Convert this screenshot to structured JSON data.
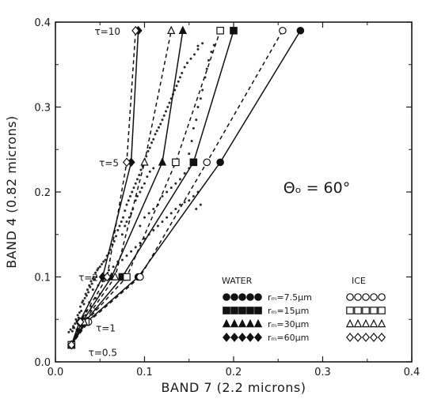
{
  "chart_data": {
    "type": "scatter",
    "xlabel": "BAND 7 (2.2 microns)",
    "ylabel": "BAND 4 (0.82 microns)",
    "xlim": [
      0.0,
      0.4
    ],
    "ylim": [
      0.0,
      0.4
    ],
    "x_ticks": [
      "0.0",
      "0.1",
      "0.2",
      "0.3",
      "0.4"
    ],
    "y_ticks": [
      "0.0",
      "0.1",
      "0.2",
      "0.3",
      "0.4"
    ],
    "grid": false,
    "legend_position": "bottom-right",
    "annotation": "Θₒ = 60°",
    "tau_labels": [
      {
        "text": "τ=10",
        "y": 0.39
      },
      {
        "text": "τ=5",
        "y": 0.235
      },
      {
        "text": "τ=2",
        "y": 0.1
      },
      {
        "text": "τ=1",
        "y": 0.047
      },
      {
        "text": "τ=0.5",
        "y": 0.02
      }
    ],
    "legend": {
      "water_header": "WATER",
      "ice_header": "ICE",
      "radii": [
        "rₘ=7.5μm",
        "rₘ=15μm",
        "rₘ=30μm",
        "rₘ=60μm"
      ]
    },
    "series": [
      {
        "phase": "water",
        "radius": "7.5μm",
        "marker": "circle",
        "line": "solid",
        "points": [
          [
            0.018,
            0.02
          ],
          [
            0.035,
            0.047
          ],
          [
            0.093,
            0.1
          ],
          [
            0.185,
            0.235
          ],
          [
            0.275,
            0.39
          ]
        ]
      },
      {
        "phase": "water",
        "radius": "15μm",
        "marker": "square",
        "line": "solid",
        "points": [
          [
            0.018,
            0.02
          ],
          [
            0.033,
            0.047
          ],
          [
            0.075,
            0.1
          ],
          [
            0.155,
            0.235
          ],
          [
            0.2,
            0.39
          ]
        ]
      },
      {
        "phase": "water",
        "radius": "30μm",
        "marker": "triangle",
        "line": "solid",
        "points": [
          [
            0.018,
            0.02
          ],
          [
            0.03,
            0.047
          ],
          [
            0.063,
            0.1
          ],
          [
            0.12,
            0.235
          ],
          [
            0.143,
            0.39
          ]
        ]
      },
      {
        "phase": "water",
        "radius": "60μm",
        "marker": "diamond",
        "line": "solid",
        "points": [
          [
            0.018,
            0.02
          ],
          [
            0.027,
            0.047
          ],
          [
            0.053,
            0.1
          ],
          [
            0.085,
            0.235
          ],
          [
            0.093,
            0.39
          ]
        ]
      },
      {
        "phase": "ice",
        "radius": "7.5μm",
        "marker": "circle",
        "line": "dashed",
        "points": [
          [
            0.018,
            0.02
          ],
          [
            0.037,
            0.047
          ],
          [
            0.095,
            0.1
          ],
          [
            0.17,
            0.235
          ],
          [
            0.255,
            0.39
          ]
        ]
      },
      {
        "phase": "ice",
        "radius": "15μm",
        "marker": "square",
        "line": "dashed",
        "points": [
          [
            0.018,
            0.02
          ],
          [
            0.034,
            0.047
          ],
          [
            0.08,
            0.1
          ],
          [
            0.135,
            0.235
          ],
          [
            0.185,
            0.39
          ]
        ]
      },
      {
        "phase": "ice",
        "radius": "30μm",
        "marker": "triangle",
        "line": "dashed",
        "points": [
          [
            0.018,
            0.02
          ],
          [
            0.032,
            0.047
          ],
          [
            0.067,
            0.1
          ],
          [
            0.1,
            0.235
          ],
          [
            0.13,
            0.39
          ]
        ]
      },
      {
        "phase": "ice",
        "radius": "60μm",
        "marker": "diamond",
        "line": "dashed",
        "points": [
          [
            0.018,
            0.02
          ],
          [
            0.028,
            0.047
          ],
          [
            0.058,
            0.1
          ],
          [
            0.08,
            0.235
          ],
          [
            0.09,
            0.39
          ]
        ]
      }
    ],
    "observations": [
      [
        0.015,
        0.035
      ],
      [
        0.017,
        0.038
      ],
      [
        0.019,
        0.036
      ],
      [
        0.02,
        0.042
      ],
      [
        0.021,
        0.04
      ],
      [
        0.022,
        0.045
      ],
      [
        0.023,
        0.05
      ],
      [
        0.024,
        0.048
      ],
      [
        0.025,
        0.055
      ],
      [
        0.026,
        0.052
      ],
      [
        0.027,
        0.058
      ],
      [
        0.028,
        0.065
      ],
      [
        0.029,
        0.06
      ],
      [
        0.03,
        0.07
      ],
      [
        0.031,
        0.072
      ],
      [
        0.032,
        0.068
      ],
      [
        0.033,
        0.075
      ],
      [
        0.034,
        0.08
      ],
      [
        0.035,
        0.078
      ],
      [
        0.036,
        0.085
      ],
      [
        0.037,
        0.082
      ],
      [
        0.038,
        0.09
      ],
      [
        0.039,
        0.088
      ],
      [
        0.04,
        0.095
      ],
      [
        0.041,
        0.092
      ],
      [
        0.042,
        0.098
      ],
      [
        0.043,
        0.1
      ],
      [
        0.044,
        0.097
      ],
      [
        0.045,
        0.105
      ],
      [
        0.046,
        0.1
      ],
      [
        0.047,
        0.108
      ],
      [
        0.048,
        0.11
      ],
      [
        0.05,
        0.112
      ],
      [
        0.052,
        0.115
      ],
      [
        0.054,
        0.118
      ],
      [
        0.056,
        0.12
      ],
      [
        0.058,
        0.125
      ],
      [
        0.06,
        0.128
      ],
      [
        0.062,
        0.132
      ],
      [
        0.064,
        0.138
      ],
      [
        0.066,
        0.142
      ],
      [
        0.068,
        0.148
      ],
      [
        0.07,
        0.155
      ],
      [
        0.072,
        0.16
      ],
      [
        0.074,
        0.165
      ],
      [
        0.076,
        0.17
      ],
      [
        0.078,
        0.178
      ],
      [
        0.08,
        0.185
      ],
      [
        0.082,
        0.19
      ],
      [
        0.084,
        0.195
      ],
      [
        0.086,
        0.2
      ],
      [
        0.088,
        0.205
      ],
      [
        0.09,
        0.21
      ],
      [
        0.092,
        0.215
      ],
      [
        0.094,
        0.22
      ],
      [
        0.096,
        0.226
      ],
      [
        0.098,
        0.23
      ],
      [
        0.1,
        0.236
      ],
      [
        0.102,
        0.242
      ],
      [
        0.104,
        0.248
      ],
      [
        0.106,
        0.252
      ],
      [
        0.108,
        0.258
      ],
      [
        0.11,
        0.262
      ],
      [
        0.112,
        0.268
      ],
      [
        0.114,
        0.272
      ],
      [
        0.116,
        0.276
      ],
      [
        0.118,
        0.28
      ],
      [
        0.12,
        0.285
      ],
      [
        0.122,
        0.29
      ],
      [
        0.124,
        0.295
      ],
      [
        0.126,
        0.3
      ],
      [
        0.128,
        0.305
      ],
      [
        0.13,
        0.31
      ],
      [
        0.132,
        0.315
      ],
      [
        0.134,
        0.32
      ],
      [
        0.136,
        0.325
      ],
      [
        0.138,
        0.33
      ],
      [
        0.14,
        0.335
      ],
      [
        0.142,
        0.34
      ],
      [
        0.145,
        0.347
      ],
      [
        0.148,
        0.352
      ],
      [
        0.152,
        0.357
      ],
      [
        0.156,
        0.362
      ],
      [
        0.16,
        0.368
      ],
      [
        0.16,
        0.372
      ],
      [
        0.165,
        0.375
      ],
      [
        0.055,
        0.1
      ],
      [
        0.06,
        0.108
      ],
      [
        0.065,
        0.112
      ],
      [
        0.07,
        0.118
      ],
      [
        0.075,
        0.12
      ],
      [
        0.08,
        0.125
      ],
      [
        0.085,
        0.13
      ],
      [
        0.09,
        0.135
      ],
      [
        0.095,
        0.14
      ],
      [
        0.1,
        0.145
      ],
      [
        0.105,
        0.15
      ],
      [
        0.11,
        0.155
      ],
      [
        0.115,
        0.16
      ],
      [
        0.12,
        0.165
      ],
      [
        0.125,
        0.17
      ],
      [
        0.13,
        0.175
      ],
      [
        0.135,
        0.18
      ],
      [
        0.14,
        0.185
      ],
      [
        0.145,
        0.188
      ],
      [
        0.15,
        0.19
      ],
      [
        0.155,
        0.195
      ],
      [
        0.16,
        0.2
      ],
      [
        0.163,
        0.185
      ],
      [
        0.158,
        0.18
      ],
      [
        0.075,
        0.15
      ],
      [
        0.078,
        0.16
      ],
      [
        0.08,
        0.165
      ],
      [
        0.083,
        0.17
      ],
      [
        0.085,
        0.175
      ],
      [
        0.087,
        0.18
      ],
      [
        0.09,
        0.19
      ],
      [
        0.092,
        0.195
      ],
      [
        0.095,
        0.2
      ],
      [
        0.097,
        0.205
      ],
      [
        0.1,
        0.21
      ],
      [
        0.103,
        0.218
      ],
      [
        0.106,
        0.224
      ],
      [
        0.11,
        0.228
      ],
      [
        0.035,
        0.06
      ],
      [
        0.04,
        0.065
      ],
      [
        0.045,
        0.075
      ],
      [
        0.05,
        0.08
      ],
      [
        0.038,
        0.07
      ],
      [
        0.042,
        0.085
      ],
      [
        0.048,
        0.09
      ],
      [
        0.053,
        0.095
      ],
      [
        0.02,
        0.04
      ],
      [
        0.025,
        0.045
      ],
      [
        0.03,
        0.05
      ],
      [
        0.034,
        0.055
      ],
      [
        0.04,
        0.06
      ],
      [
        0.045,
        0.062
      ],
      [
        0.024,
        0.038
      ],
      [
        0.028,
        0.042
      ],
      [
        0.095,
        0.16
      ],
      [
        0.1,
        0.17
      ],
      [
        0.105,
        0.175
      ],
      [
        0.11,
        0.18
      ],
      [
        0.115,
        0.185
      ],
      [
        0.12,
        0.195
      ],
      [
        0.125,
        0.2
      ],
      [
        0.13,
        0.205
      ],
      [
        0.135,
        0.21
      ],
      [
        0.14,
        0.215
      ],
      [
        0.145,
        0.222
      ],
      [
        0.15,
        0.228
      ],
      [
        0.15,
        0.245
      ],
      [
        0.153,
        0.26
      ],
      [
        0.155,
        0.275
      ],
      [
        0.158,
        0.285
      ],
      [
        0.16,
        0.3
      ],
      [
        0.163,
        0.31
      ],
      [
        0.165,
        0.32
      ],
      [
        0.168,
        0.335
      ],
      [
        0.17,
        0.345
      ],
      [
        0.172,
        0.355
      ],
      [
        0.175,
        0.365
      ],
      [
        0.178,
        0.373
      ]
    ]
  }
}
